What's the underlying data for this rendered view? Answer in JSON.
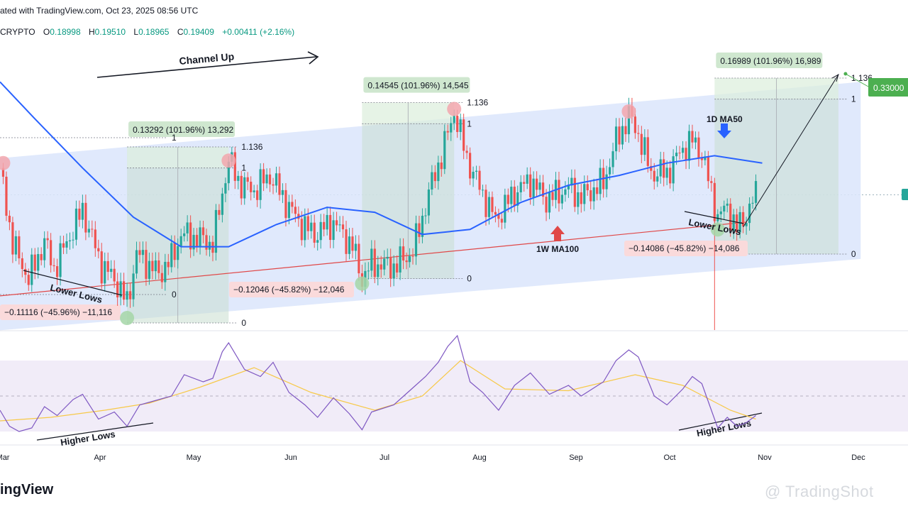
{
  "header": {
    "published": "ated with TradingView.com, Oct 23, 2025 08:56 UTC",
    "exchange": "CRYPTO",
    "open_label": "O",
    "open": "0.18998",
    "high_label": "H",
    "high": "0.19510",
    "low_label": "L",
    "low": "0.18965",
    "close_label": "C",
    "close": "0.19409",
    "change": "+0.00411 (+2.16%)"
  },
  "branding": {
    "logo": "ingView",
    "watermark": "@ TradingShot"
  },
  "colors": {
    "up": "#26a69a",
    "down": "#ef5350",
    "ma50": "#2962ff",
    "ma100": "#e04848",
    "rsi": "#7e57c2",
    "rsi_ma": "#f7c948",
    "channel": "#dbe5fb",
    "target": "#4caf50",
    "gain_fill": "#d8ead8",
    "loss_fill": "#fadadb"
  },
  "chart_data": {
    "type": "candlestick",
    "x_ticks": [
      "Mar",
      "Apr",
      "May",
      "Jun",
      "Jul",
      "Aug",
      "Sep",
      "Oct",
      "Nov",
      "Dec"
    ],
    "swing_path": [
      [
        "2025-02-27",
        0.205
      ],
      [
        "2025-03-01",
        0.19
      ],
      [
        "2025-03-03",
        0.174
      ],
      [
        "2025-03-08",
        0.16
      ],
      [
        "2025-03-13",
        0.175
      ],
      [
        "2025-03-16",
        0.164
      ],
      [
        "2025-03-22",
        0.18
      ],
      [
        "2025-03-25",
        0.188
      ],
      [
        "2025-03-31",
        0.165
      ],
      [
        "2025-04-04",
        0.16
      ],
      [
        "2025-04-08",
        0.15
      ],
      [
        "2025-04-11",
        0.17
      ],
      [
        "2025-04-18",
        0.162
      ],
      [
        "2025-04-22",
        0.168
      ],
      [
        "2025-04-25",
        0.178
      ],
      [
        "2025-05-02",
        0.176
      ],
      [
        "2025-05-05",
        0.174
      ],
      [
        "2025-05-08",
        0.195
      ],
      [
        "2025-05-10",
        0.208
      ],
      [
        "2025-05-14",
        0.198
      ],
      [
        "2025-05-18",
        0.196
      ],
      [
        "2025-05-23",
        0.202
      ],
      [
        "2025-05-29",
        0.189
      ],
      [
        "2025-06-02",
        0.182
      ],
      [
        "2025-06-06",
        0.178
      ],
      [
        "2025-06-12",
        0.183
      ],
      [
        "2025-06-18",
        0.173
      ],
      [
        "2025-06-21",
        0.16
      ],
      [
        "2025-06-24",
        0.166
      ],
      [
        "2025-07-01",
        0.165
      ],
      [
        "2025-07-07",
        0.171
      ],
      [
        "2025-07-10",
        0.185
      ],
      [
        "2025-07-13",
        0.199
      ],
      [
        "2025-07-16",
        0.21
      ],
      [
        "2025-07-20",
        0.228
      ],
      [
        "2025-07-24",
        0.209
      ],
      [
        "2025-07-28",
        0.197
      ],
      [
        "2025-08-02",
        0.184
      ],
      [
        "2025-08-08",
        0.195
      ],
      [
        "2025-08-13",
        0.2
      ],
      [
        "2025-08-18",
        0.192
      ],
      [
        "2025-08-25",
        0.197
      ],
      [
        "2025-08-29",
        0.193
      ],
      [
        "2025-09-05",
        0.199
      ],
      [
        "2025-09-09",
        0.216
      ],
      [
        "2025-09-13",
        0.226
      ],
      [
        "2025-09-16",
        0.219
      ],
      [
        "2025-09-20",
        0.203
      ],
      [
        "2025-09-25",
        0.203
      ],
      [
        "2025-09-30",
        0.213
      ],
      [
        "2025-10-03",
        0.216
      ],
      [
        "2025-10-06",
        0.211
      ],
      [
        "2025-10-09",
        0.195
      ],
      [
        "2025-10-11",
        0.185
      ],
      [
        "2025-10-14",
        0.189
      ],
      [
        "2025-10-17",
        0.18
      ],
      [
        "2025-10-20",
        0.186
      ],
      [
        "2025-10-23",
        0.194
      ]
    ],
    "ma50_1d": [
      [
        "2025-02-27",
        0.24
      ],
      [
        "2025-03-10",
        0.225
      ],
      [
        "2025-03-25",
        0.205
      ],
      [
        "2025-04-10",
        0.185
      ],
      [
        "2025-04-25",
        0.173
      ],
      [
        "2025-05-10",
        0.173
      ],
      [
        "2025-05-25",
        0.182
      ],
      [
        "2025-06-10",
        0.189
      ],
      [
        "2025-06-25",
        0.187
      ],
      [
        "2025-07-10",
        0.178
      ],
      [
        "2025-07-25",
        0.18
      ],
      [
        "2025-08-10",
        0.191
      ],
      [
        "2025-08-25",
        0.198
      ],
      [
        "2025-09-10",
        0.202
      ],
      [
        "2025-09-25",
        0.207
      ],
      [
        "2025-10-10",
        0.21
      ],
      [
        "2025-10-25",
        0.207
      ]
    ],
    "ma100_1w": [
      [
        "2025-02-27",
        0.153
      ],
      [
        "2025-10-20",
        0.183
      ]
    ],
    "channel": {
      "label": "Channel Up",
      "upper": [
        [
          "2025-02-27",
          0.209
        ],
        [
          "2025-11-25",
          0.24
        ]
      ],
      "lower": [
        [
          "2025-02-27",
          0.139
        ],
        [
          "2025-11-25",
          0.168
        ]
      ]
    },
    "target_projection": {
      "from": [
        "2025-10-19",
        0.181
      ],
      "to": [
        "2025-11-18",
        0.243
      ],
      "value": "0.33000"
    },
    "fib_rallies": [
      {
        "start": "2025-04-08",
        "end": "2025-05-10",
        "low": 0.142,
        "high": 0.205,
        "label": "0.13292 (101.96%) 13,292",
        "level0": "0",
        "level1": "1",
        "level1136": "1.136"
      },
      {
        "start": "2025-06-21",
        "end": "2025-07-20",
        "low": 0.16,
        "high": 0.223,
        "label": "0.14545 (101.96%) 14,545",
        "level0": "0",
        "level1": "1",
        "level1136": "1.136"
      },
      {
        "start": "2025-10-10",
        "end": "2025-11-18",
        "low": 0.17,
        "high": 0.233,
        "label": "0.16989 (101.96%) 16,989",
        "level0": "0",
        "level1": "1",
        "level1136": "1.136"
      }
    ],
    "fib_declines": [
      {
        "label": "−0.11116 (−45.96%) −11,116"
      },
      {
        "label": "−0.12046 (−45.82%) −12,046"
      },
      {
        "label": "−0.14086 (−45.82%) −14,086"
      }
    ],
    "fib_level_prev_1": "1",
    "fib_level_prev_0": "0",
    "annotations": [
      "Lower Lows",
      "Lower Lows",
      "1D MA50",
      "1W MA100",
      "Higher Lows",
      "Higher Lows"
    ],
    "rsi": {
      "ylim": [
        0,
        100
      ],
      "band": [
        30,
        70
      ],
      "series": [
        [
          "2025-02-27",
          42
        ],
        [
          "2025-03-02",
          33
        ],
        [
          "2025-03-05",
          30
        ],
        [
          "2025-03-09",
          32
        ],
        [
          "2025-03-13",
          44
        ],
        [
          "2025-03-17",
          39
        ],
        [
          "2025-03-22",
          48
        ],
        [
          "2025-03-25",
          51
        ],
        [
          "2025-03-30",
          37
        ],
        [
          "2025-04-04",
          41
        ],
        [
          "2025-04-08",
          33
        ],
        [
          "2025-04-12",
          45
        ],
        [
          "2025-04-18",
          48
        ],
        [
          "2025-04-22",
          50
        ],
        [
          "2025-04-26",
          62
        ],
        [
          "2025-05-02",
          58
        ],
        [
          "2025-05-05",
          60
        ],
        [
          "2025-05-08",
          75
        ],
        [
          "2025-05-10",
          80
        ],
        [
          "2025-05-15",
          65
        ],
        [
          "2025-05-20",
          61
        ],
        [
          "2025-05-24",
          69
        ],
        [
          "2025-05-29",
          52
        ],
        [
          "2025-06-03",
          45
        ],
        [
          "2025-06-07",
          38
        ],
        [
          "2025-06-12",
          49
        ],
        [
          "2025-06-17",
          40
        ],
        [
          "2025-06-21",
          31
        ],
        [
          "2025-06-24",
          41
        ],
        [
          "2025-07-01",
          45
        ],
        [
          "2025-07-06",
          53
        ],
        [
          "2025-07-11",
          61
        ],
        [
          "2025-07-15",
          69
        ],
        [
          "2025-07-18",
          78
        ],
        [
          "2025-07-21",
          84
        ],
        [
          "2025-07-25",
          58
        ],
        [
          "2025-07-29",
          52
        ],
        [
          "2025-08-03",
          42
        ],
        [
          "2025-08-08",
          56
        ],
        [
          "2025-08-13",
          63
        ],
        [
          "2025-08-19",
          51
        ],
        [
          "2025-08-25",
          56
        ],
        [
          "2025-08-29",
          50
        ],
        [
          "2025-09-05",
          58
        ],
        [
          "2025-09-09",
          70
        ],
        [
          "2025-09-13",
          76
        ],
        [
          "2025-09-16",
          72
        ],
        [
          "2025-09-21",
          50
        ],
        [
          "2025-09-25",
          45
        ],
        [
          "2025-09-30",
          54
        ],
        [
          "2025-10-03",
          61
        ],
        [
          "2025-10-06",
          57
        ],
        [
          "2025-10-09",
          42
        ],
        [
          "2025-10-11",
          32
        ],
        [
          "2025-10-14",
          38
        ],
        [
          "2025-10-17",
          33
        ],
        [
          "2025-10-20",
          35
        ],
        [
          "2025-10-23",
          39
        ]
      ],
      "ma": [
        [
          "2025-02-27",
          36
        ],
        [
          "2025-03-15",
          38
        ],
        [
          "2025-04-01",
          42
        ],
        [
          "2025-04-15",
          46
        ],
        [
          "2025-05-01",
          55
        ],
        [
          "2025-05-18",
          66
        ],
        [
          "2025-06-05",
          52
        ],
        [
          "2025-06-25",
          42
        ],
        [
          "2025-07-10",
          50
        ],
        [
          "2025-07-22",
          70
        ],
        [
          "2025-08-05",
          54
        ],
        [
          "2025-08-25",
          53
        ],
        [
          "2025-09-15",
          62
        ],
        [
          "2025-09-30",
          56
        ],
        [
          "2025-10-15",
          42
        ],
        [
          "2025-10-23",
          37
        ]
      ]
    }
  }
}
